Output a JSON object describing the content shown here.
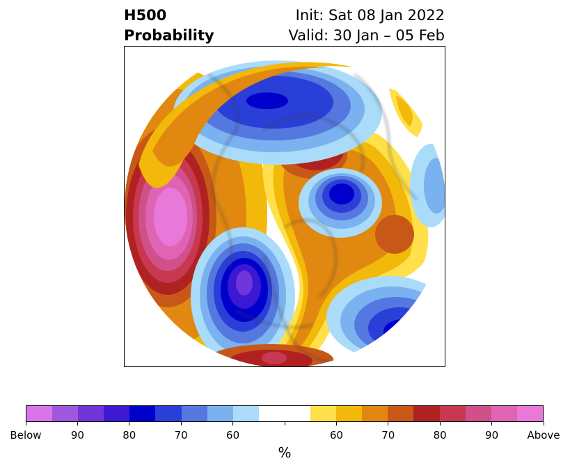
{
  "header": {
    "title_line1": "H500",
    "title_line2": "Probability",
    "init": "Init: Sat 08 Jan 2022",
    "valid": "Valid: 30 Jan – 05 Feb"
  },
  "colorbar": {
    "colors": [
      "#d875e8",
      "#a057e0",
      "#7035d8",
      "#3c18d4",
      "#0000cc",
      "#2a3ed8",
      "#5577e0",
      "#7ab2f0",
      "#aadcfa",
      "#ffffff",
      "#ffffff",
      "#ffe04a",
      "#f2b80a",
      "#e08810",
      "#c85818",
      "#b02222",
      "#c83850",
      "#d0508a",
      "#df64b4",
      "#e879d8"
    ],
    "tick_labels": [
      "Below",
      "90",
      "80",
      "70",
      "60",
      "",
      "60",
      "70",
      "80",
      "90",
      "Above"
    ],
    "unit": "%"
  }
}
